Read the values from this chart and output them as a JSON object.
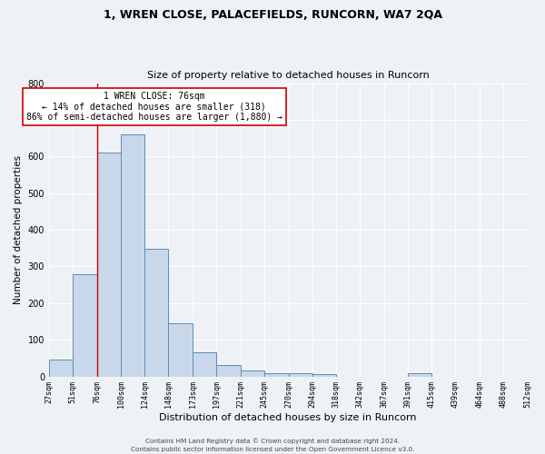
{
  "title": "1, WREN CLOSE, PALACEFIELDS, RUNCORN, WA7 2QA",
  "subtitle": "Size of property relative to detached houses in Runcorn",
  "xlabel": "Distribution of detached houses by size in Runcorn",
  "ylabel": "Number of detached properties",
  "bar_color": "#c8d8ea",
  "bar_edge_color": "#5b8db8",
  "background_color": "#eef2f7",
  "grid_color": "#ffffff",
  "annotation_line_color": "#cc0000",
  "annotation_marker_value": 76,
  "annotation_text_line1": "1 WREN CLOSE: 76sqm",
  "annotation_text_line2": "← 14% of detached houses are smaller (318)",
  "annotation_text_line3": "86% of semi-detached houses are larger (1,880) →",
  "footer_line1": "Contains HM Land Registry data © Crown copyright and database right 2024.",
  "footer_line2": "Contains public sector information licensed under the Open Government Licence v3.0.",
  "bin_edges": [
    27,
    51,
    76,
    100,
    124,
    148,
    173,
    197,
    221,
    245,
    270,
    294,
    318,
    342,
    367,
    391,
    415,
    439,
    464,
    488,
    512
  ],
  "bar_heights": [
    45,
    280,
    610,
    660,
    348,
    145,
    65,
    30,
    17,
    10,
    8,
    7,
    0,
    0,
    0,
    8,
    0,
    0,
    0,
    0
  ],
  "ylim": [
    0,
    800
  ],
  "yticks": [
    0,
    100,
    200,
    300,
    400,
    500,
    600,
    700,
    800
  ]
}
